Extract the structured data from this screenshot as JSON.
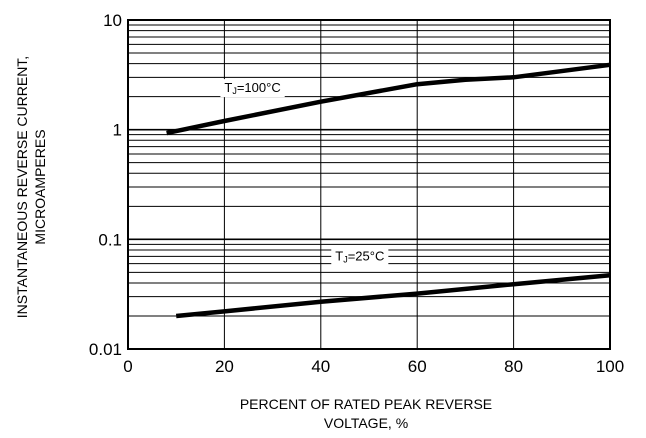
{
  "chart_data": {
    "type": "line",
    "title": "",
    "xlabel_lines": [
      "PERCENT OF RATED PEAK REVERSE",
      "VOLTAGE, %"
    ],
    "ylabel_lines": [
      "INSTANTANEOUS REVERSE CURRENT,",
      "MICROAMPERES"
    ],
    "xlim": [
      0,
      100
    ],
    "ylim": [
      0.01,
      10
    ],
    "yscale": "log",
    "grid": true,
    "x_ticks": [
      {
        "value": 0,
        "label": "0"
      },
      {
        "value": 20,
        "label": "20"
      },
      {
        "value": 40,
        "label": "40"
      },
      {
        "value": 60,
        "label": "60"
      },
      {
        "value": 80,
        "label": "80"
      },
      {
        "value": 100,
        "label": "100"
      }
    ],
    "y_ticks": [
      {
        "value": 0.01,
        "label": "0.01"
      },
      {
        "value": 0.1,
        "label": "0.1"
      },
      {
        "value": 1,
        "label": "1"
      },
      {
        "value": 10,
        "label": "10"
      }
    ],
    "series": [
      {
        "label_prefix": "T",
        "label_sub": "J",
        "label_suffix": "=100°C",
        "label_at": {
          "x": 20,
          "y": 2.2
        },
        "x": [
          8,
          20,
          40,
          60,
          70,
          80,
          100
        ],
        "y": [
          0.93,
          1.2,
          1.8,
          2.6,
          2.85,
          3.0,
          3.9
        ]
      },
      {
        "label_prefix": "T",
        "label_sub": "J",
        "label_suffix": "=25°C",
        "label_at": {
          "x": 43,
          "y": 0.064
        },
        "x": [
          10,
          20,
          40,
          60,
          80,
          100
        ],
        "y": [
          0.02,
          0.022,
          0.027,
          0.032,
          0.039,
          0.047
        ]
      }
    ]
  }
}
